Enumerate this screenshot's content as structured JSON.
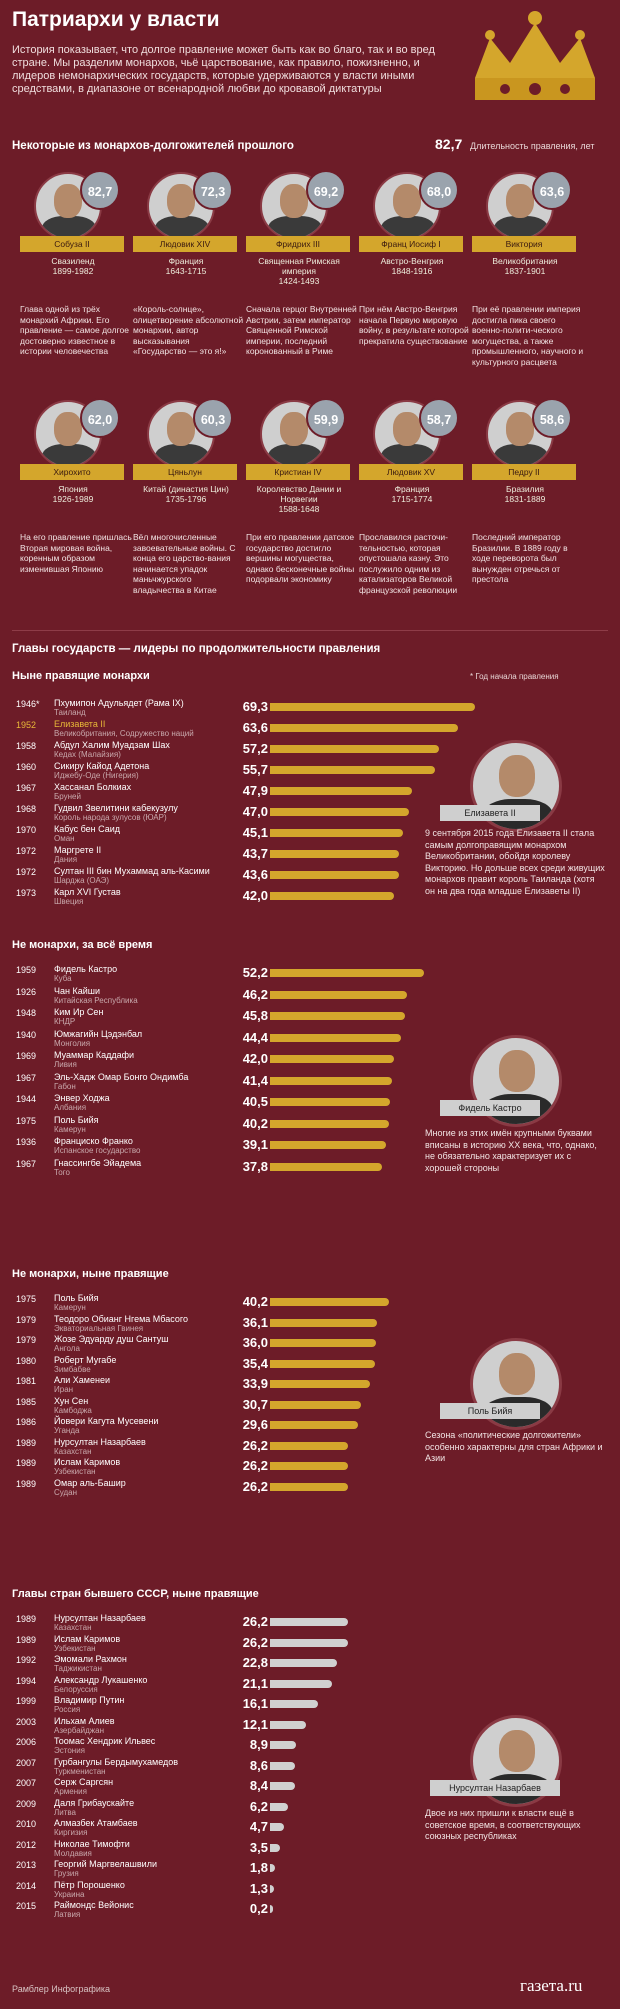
{
  "header": {
    "title": "Патриархи у власти",
    "intro": "История показывает, что долгое правление может быть как во благо, так и во вред стране. Мы разделим монархов, чьё царствование, как правило, пожизненно, и лидеров немонархических государств, которые удерживаются у власти иными средствами, в диапазоне от всенародной любви до кровавой диктатуры",
    "subtitle": "Некоторые из монархов-долгожителей прошлого",
    "legend_value": "82,7",
    "legend_label": "Длительность правления, лет"
  },
  "colors": {
    "background": "#6d1c28",
    "gold_bar": "#d4a62c",
    "grey_bar": "#d0d0d0",
    "ribbon": "#d4a62c"
  },
  "monarchs_row1": [
    {
      "name": "Собуза II",
      "value": "82,7",
      "country": "Свазиленд",
      "years": "1899-1982",
      "desc": "Глава одной из трёх монархий Африки. Его правление — самое долгое достоверно известное в истории человечества"
    },
    {
      "name": "Людовик XIV",
      "value": "72,3",
      "country": "Франция",
      "years": "1643-1715",
      "desc": "«Король-солнце», олицетворение абсолютной монархии, автор высказывания «Государство — это я!»"
    },
    {
      "name": "Фридрих III",
      "value": "69,2",
      "country": "Священная Римская империя",
      "years": "1424-1493",
      "desc": "Сначала герцог Внутренней Австрии, затем император Священной Римской империи, последний коронованный в Риме"
    },
    {
      "name": "Франц Иосиф I",
      "value": "68,0",
      "country": "Австро-Венгрия",
      "years": "1848-1916",
      "desc": "При нём Австро-Венгрия начала Первую мировую войну, в результате которой прекратила существование"
    },
    {
      "name": "Виктория",
      "value": "63,6",
      "country": "Великобритания",
      "years": "1837-1901",
      "desc": "При её правлении империя достигла пика своего военно-полити-ческого могущества, а также промышленного, научного и культурного расцвета"
    }
  ],
  "monarchs_row2": [
    {
      "name": "Хирохито",
      "value": "62,0",
      "country": "Япония",
      "years": "1926-1989",
      "desc": "На его правление пришлась Вторая мировая война, коренным образом изменившая Японию"
    },
    {
      "name": "Цяньлун",
      "value": "60,3",
      "country": "Китай (династия Цин)",
      "years": "1735-1796",
      "desc": "Вёл многочисленные завоевательные войны. С конца его царство-вания начинается упадок маньчжурского владычества в Китае"
    },
    {
      "name": "Кристиан IV",
      "value": "59,9",
      "country": "Королевство Дании и Норвегии",
      "years": "1588-1648",
      "desc": "При его правлении датское государство достигло вершины могущества, однако бесконечные войны подорвали экономику"
    },
    {
      "name": "Людовик XV",
      "value": "58,7",
      "country": "Франция",
      "years": "1715-1774",
      "desc": "Прославился расточи-тельностью, которая опустошала казну. Это послужило одним из катализаторов Великой французской революции"
    },
    {
      "name": "Педру II",
      "value": "58,6",
      "country": "Бразилия",
      "years": "1831-1889",
      "desc": "Последний император Бразилии. В 1889 году в ходе переворота был вынужден отречься от престола"
    }
  ],
  "section_heads": {
    "main": "Главы государств — лидеры по продолжительности правления",
    "s1": "Ныне правящие монархи",
    "s1_note": "*  Год начала правления",
    "s2": "Не монархи, за всё время",
    "s3": "Не монархи, ныне правящие",
    "s4": "Главы стран бывшего СССР, ныне правящие"
  },
  "chart_data": [
    {
      "type": "bar",
      "title": "Ныне правящие монархи",
      "rows": [
        {
          "year": "1946*",
          "name": "Пхумипон Адульядет (Рама IX)",
          "country": "Таиланд",
          "value": 69.3,
          "label": "69,3",
          "highlight": false
        },
        {
          "year": "1952",
          "name": "Елизавета II",
          "country": "Великобритания, Содружество наций",
          "value": 63.6,
          "label": "63,6",
          "highlight": true
        },
        {
          "year": "1958",
          "name": "Абдул Халим Муадзам Шах",
          "country": "Кедах (Малайзия)",
          "value": 57.2,
          "label": "57,2",
          "highlight": false
        },
        {
          "year": "1960",
          "name": "Сикиру Кайод Адетона",
          "country": "Иджебу-Оде (Нигерия)",
          "value": 55.7,
          "label": "55,7",
          "highlight": false
        },
        {
          "year": "1967",
          "name": "Хассанал Болкиах",
          "country": "Бруней",
          "value": 47.9,
          "label": "47,9",
          "highlight": false
        },
        {
          "year": "1968",
          "name": "Гудвил Звелитини кабекузулу",
          "country": "Король народа зулусов (ЮАР)",
          "value": 47.0,
          "label": "47,0",
          "highlight": false
        },
        {
          "year": "1970",
          "name": "Кабус бен Саид",
          "country": "Оман",
          "value": 45.1,
          "label": "45,1",
          "highlight": false
        },
        {
          "year": "1972",
          "name": "Маргрете II",
          "country": "Дания",
          "value": 43.7,
          "label": "43,7",
          "highlight": false
        },
        {
          "year": "1972",
          "name": "Султан III бин Мухаммад аль-Касими",
          "country": "Шарджа (ОАЭ)",
          "value": 43.6,
          "label": "43,6",
          "highlight": false
        },
        {
          "year": "1973",
          "name": "Карл XVI Густав",
          "country": "Швеция",
          "value": 42.0,
          "label": "42,0",
          "highlight": false
        }
      ]
    },
    {
      "type": "bar",
      "title": "Не монархи, за всё время",
      "rows": [
        {
          "year": "1959",
          "name": "Фидель Кастро",
          "country": "Куба",
          "value": 52.2,
          "label": "52,2"
        },
        {
          "year": "1926",
          "name": "Чан Кайши",
          "country": "Китайская Республика",
          "value": 46.2,
          "label": "46,2"
        },
        {
          "year": "1948",
          "name": "Ким Ир Сен",
          "country": "КНДР",
          "value": 45.8,
          "label": "45,8"
        },
        {
          "year": "1940",
          "name": "Юмжагийн Цэдэнбал",
          "country": "Монголия",
          "value": 44.4,
          "label": "44,4"
        },
        {
          "year": "1969",
          "name": "Муаммар Каддафи",
          "country": "Ливия",
          "value": 42.0,
          "label": "42,0"
        },
        {
          "year": "1967",
          "name": "Эль-Хадж Омар Бонго Ондимба",
          "country": "Габон",
          "value": 41.4,
          "label": "41,4"
        },
        {
          "year": "1944",
          "name": "Энвер Ходжа",
          "country": "Албания",
          "value": 40.5,
          "label": "40,5"
        },
        {
          "year": "1975",
          "name": "Поль Бийя",
          "country": "Камерун",
          "value": 40.2,
          "label": "40,2"
        },
        {
          "year": "1936",
          "name": "Франциско Франко",
          "country": "Испанское государство",
          "value": 39.1,
          "label": "39,1"
        },
        {
          "year": "1967",
          "name": "Гнассингбе Эйадема",
          "country": "Того",
          "value": 37.8,
          "label": "37,8"
        }
      ]
    },
    {
      "type": "bar",
      "title": "Не монархи, ныне правящие",
      "rows": [
        {
          "year": "1975",
          "name": "Поль Бийя",
          "country": "Камерун",
          "value": 40.2,
          "label": "40,2"
        },
        {
          "year": "1979",
          "name": "Теодоро Обианг Нгема Мбасого",
          "country": "Экваториальная Гвинея",
          "value": 36.1,
          "label": "36,1"
        },
        {
          "year": "1979",
          "name": "Жозе Эдуарду душ Сантуш",
          "country": "Ангола",
          "value": 36.0,
          "label": "36,0"
        },
        {
          "year": "1980",
          "name": "Роберт Мугабе",
          "country": "Зимбабве",
          "value": 35.4,
          "label": "35,4"
        },
        {
          "year": "1981",
          "name": "Али Хаменеи",
          "country": "Иран",
          "value": 33.9,
          "label": "33,9"
        },
        {
          "year": "1985",
          "name": "Хун Сен",
          "country": "Камбоджа",
          "value": 30.7,
          "label": "30,7"
        },
        {
          "year": "1986",
          "name": "Йовери Кагута Мусевени",
          "country": "Уганда",
          "value": 29.6,
          "label": "29,6"
        },
        {
          "year": "1989",
          "name": "Нурсултан Назарбаев",
          "country": "Казахстан",
          "value": 26.2,
          "label": "26,2"
        },
        {
          "year": "1989",
          "name": "Ислам Каримов",
          "country": "Узбекистан",
          "value": 26.2,
          "label": "26,2"
        },
        {
          "year": "1989",
          "name": "Омар аль-Башир",
          "country": "Судан",
          "value": 26.2,
          "label": "26,2"
        }
      ]
    },
    {
      "type": "bar",
      "title": "Главы стран бывшего СССР, ныне правящие",
      "rows": [
        {
          "year": "1989",
          "name": "Нурсултан Назарбаев",
          "country": "Казахстан",
          "value": 26.2,
          "label": "26,2"
        },
        {
          "year": "1989",
          "name": "Ислам Каримов",
          "country": "Узбекистан",
          "value": 26.2,
          "label": "26,2"
        },
        {
          "year": "1992",
          "name": "Эмомали Рахмон",
          "country": "Таджикистан",
          "value": 22.8,
          "label": "22,8"
        },
        {
          "year": "1994",
          "name": "Александр Лукашенко",
          "country": "Белоруссия",
          "value": 21.1,
          "label": "21,1"
        },
        {
          "year": "1999",
          "name": "Владимир Путин",
          "country": "Россия",
          "value": 16.1,
          "label": "16,1"
        },
        {
          "year": "2003",
          "name": "Ильхам Алиев",
          "country": "Азербайджан",
          "value": 12.1,
          "label": "12,1"
        },
        {
          "year": "2006",
          "name": "Тоомас Хендрик Ильвес",
          "country": "Эстония",
          "value": 8.9,
          "label": "8,9"
        },
        {
          "year": "2007",
          "name": "Гурбангулы Бердымухамедов",
          "country": "Туркменистан",
          "value": 8.6,
          "label": "8,6"
        },
        {
          "year": "2007",
          "name": "Серж Саргсян",
          "country": "Армения",
          "value": 8.4,
          "label": "8,4"
        },
        {
          "year": "2009",
          "name": "Даля Грибаускайте",
          "country": "Литва",
          "value": 6.2,
          "label": "6,2"
        },
        {
          "year": "2010",
          "name": "Алмазбек Атамбаев",
          "country": "Киргизия",
          "value": 4.7,
          "label": "4,7"
        },
        {
          "year": "2012",
          "name": "Николае Тимофти",
          "country": "Молдавия",
          "value": 3.5,
          "label": "3,5"
        },
        {
          "year": "2013",
          "name": "Георгий Маргвелашвили",
          "country": "Грузия",
          "value": 1.8,
          "label": "1,8"
        },
        {
          "year": "2014",
          "name": "Пётр Порошенко",
          "country": "Украина",
          "value": 1.3,
          "label": "1,3"
        },
        {
          "year": "2015",
          "name": "Раймондс Вейонис",
          "country": "Латвия",
          "value": 0.2,
          "label": "0,2"
        }
      ]
    }
  ],
  "portraits": [
    {
      "label": "Елизавета II",
      "note": "9 сентября 2015 года Елизавета II стала самым долгоправящим монархом Великобритании, обойдя королеву Викторию. Но дольше всех среди живущих монархов правит король Таиланда (хотя он на два года младше Елизаветы II)"
    },
    {
      "label": "Фидель Кастро",
      "note": "Многие из этих имён крупными буквами вписаны в историю XX века, что, однако, не обязательно характеризует их с хорошей стороны"
    },
    {
      "label": "Поль Бийя",
      "note": "Сезона «политические долгожители» особенно характерны для стран Африки и Азии"
    },
    {
      "label": "Нурсултан Назарбаев",
      "note": "Двое из них пришли к власти ещё в советское время, в соответствующих союзных республиках"
    }
  ],
  "footer": {
    "left": "Рамблер Инфографика",
    "right": "газета.ru"
  }
}
